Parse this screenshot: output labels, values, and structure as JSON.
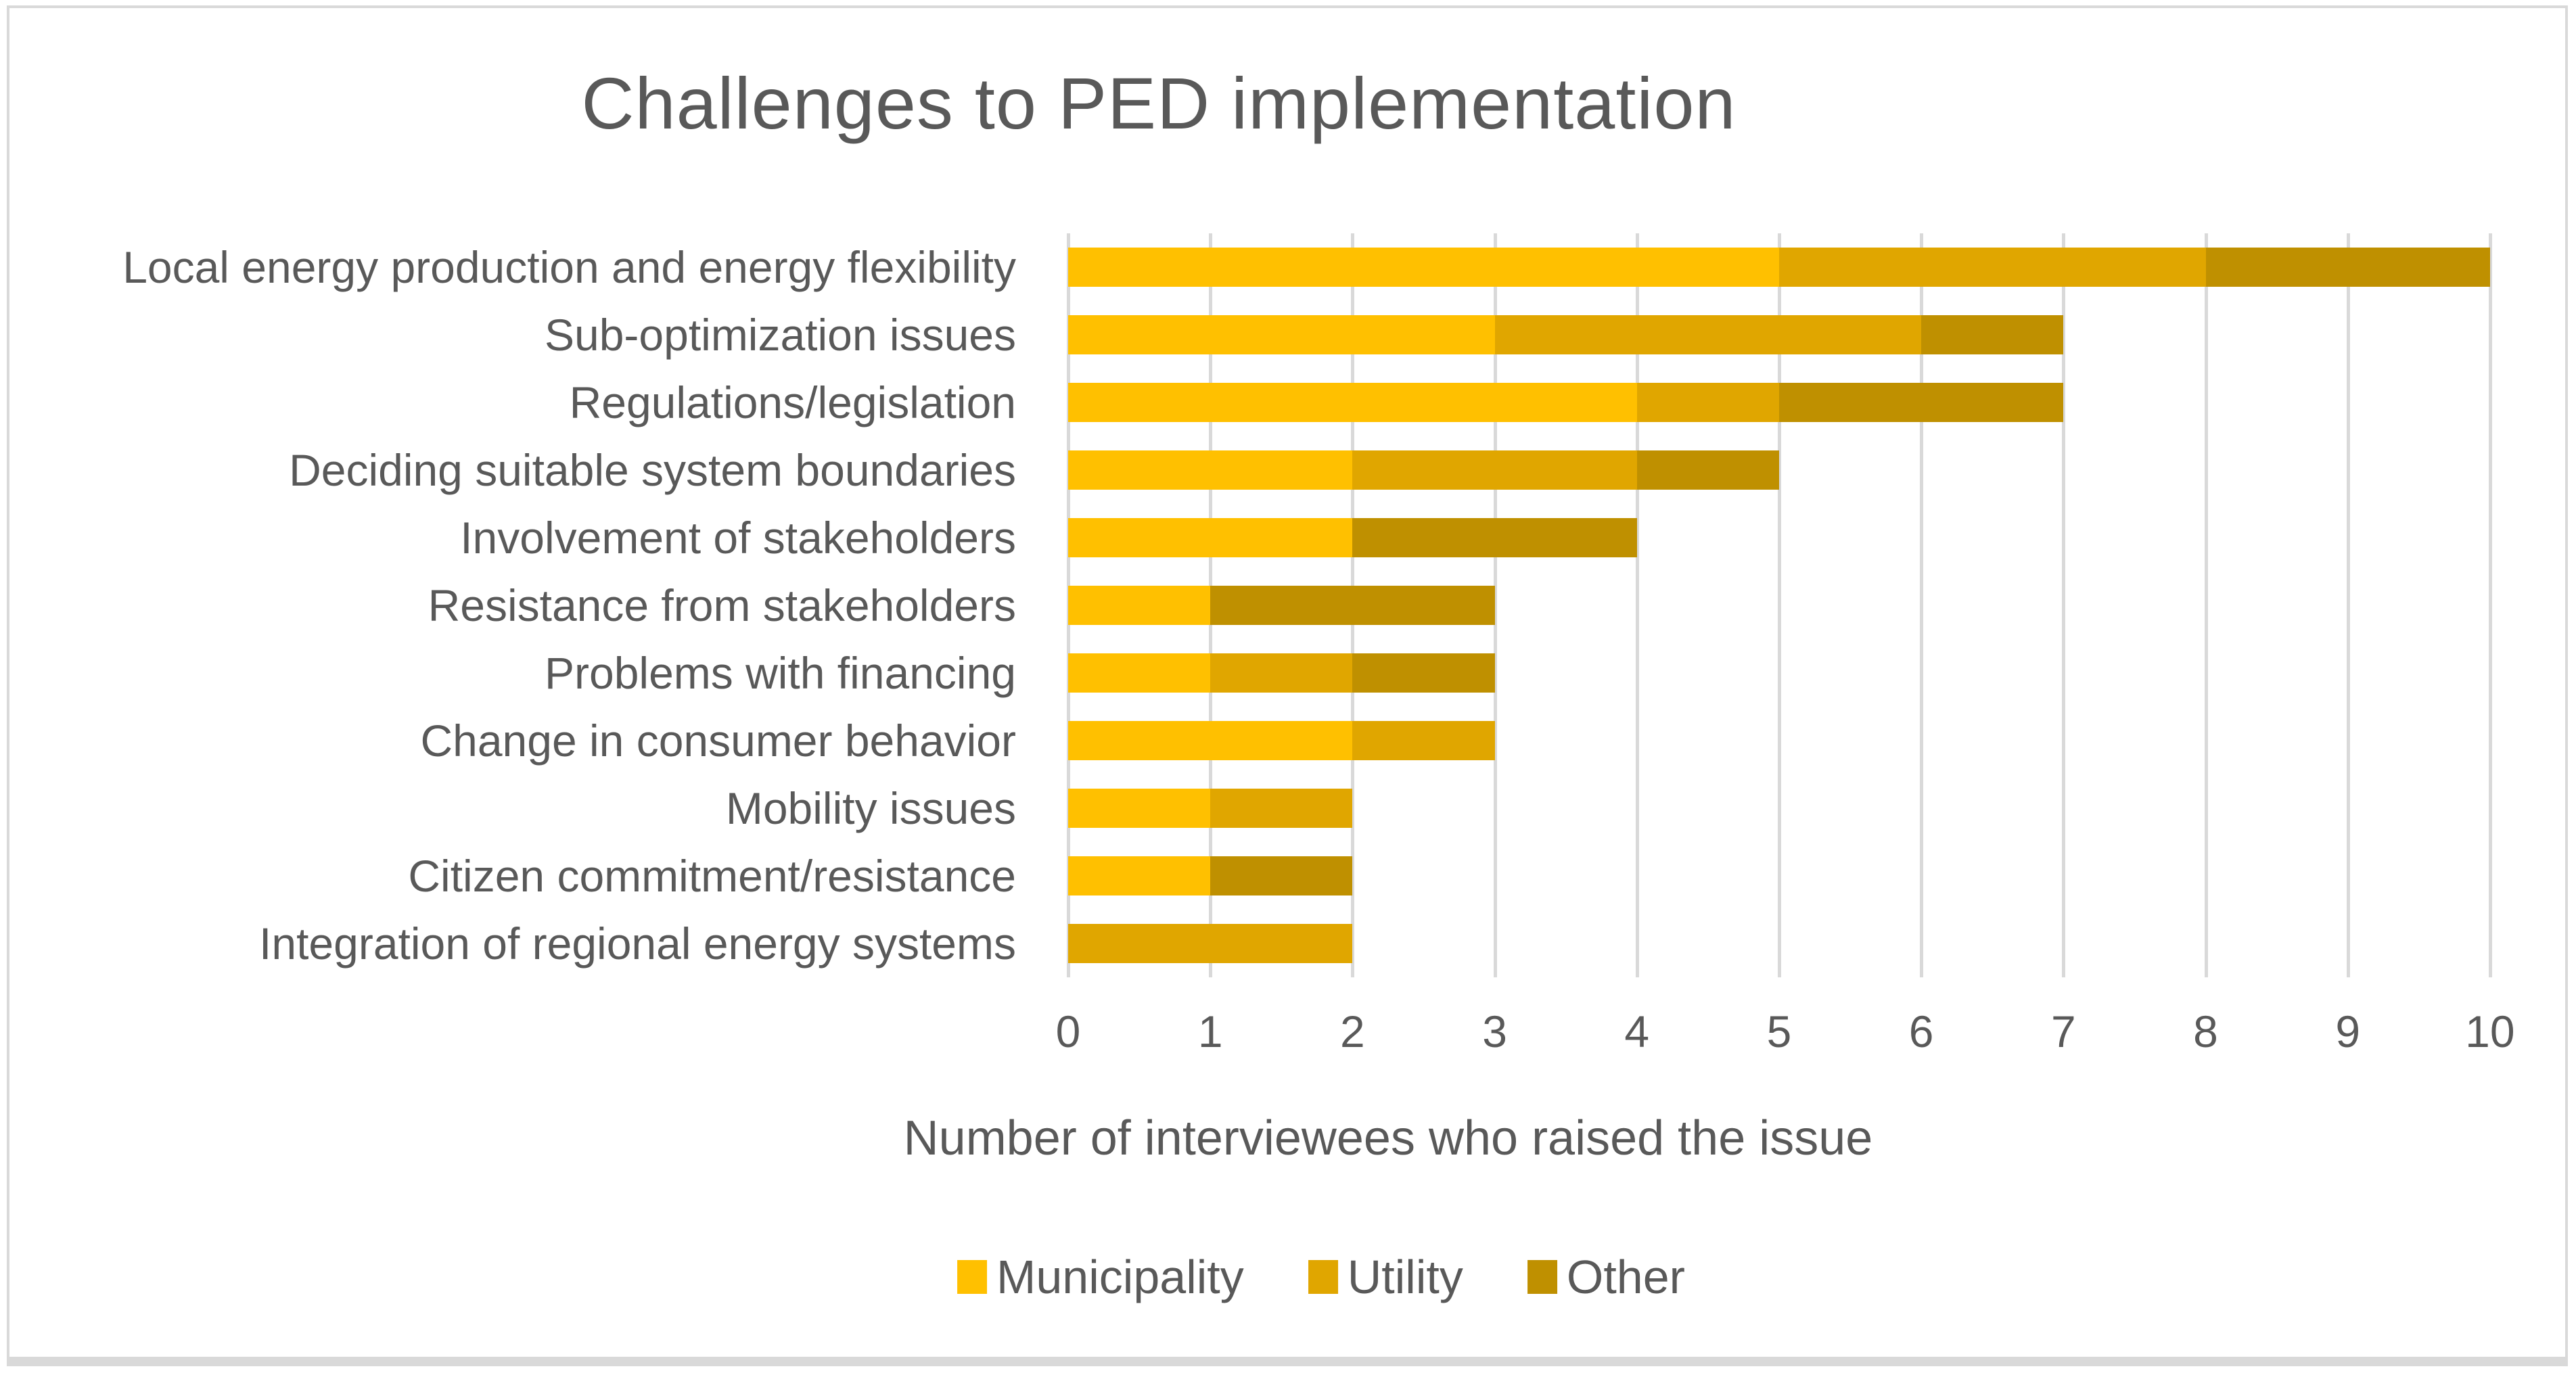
{
  "chart_data": {
    "type": "bar",
    "orientation": "horizontal",
    "stacked": true,
    "title": "Challenges to PED implementation",
    "xlabel": "Number of interviewees who raised the issue",
    "ylabel": "",
    "xlim": [
      0,
      10
    ],
    "grid": "vertical",
    "legend_position": "bottom",
    "tick_labels": [
      "0",
      "1",
      "2",
      "3",
      "4",
      "5",
      "6",
      "7",
      "8",
      "9",
      "10"
    ],
    "categories": [
      "Local energy production and energy flexibility",
      "Sub-optimization issues",
      "Regulations/legislation",
      "Deciding suitable system boundaries",
      "Involvement of stakeholders",
      "Resistance from stakeholders",
      "Problems with financing",
      "Change in consumer behavior",
      "Mobility issues",
      "Citizen commitment/resistance",
      "Integration of regional energy systems"
    ],
    "series": [
      {
        "name": "Municipality",
        "color": "#FFC000",
        "values": [
          5,
          3,
          4,
          2,
          2,
          1,
          1,
          2,
          1,
          1,
          0
        ]
      },
      {
        "name": "Utility",
        "color": "#E0A600",
        "values": [
          3,
          3,
          1,
          2,
          0,
          0,
          1,
          1,
          1,
          0,
          2
        ]
      },
      {
        "name": "Other",
        "color": "#BF9000",
        "values": [
          2,
          1,
          2,
          1,
          2,
          2,
          1,
          0,
          0,
          1,
          0
        ]
      }
    ],
    "totals": [
      10,
      7,
      7,
      5,
      4,
      3,
      3,
      3,
      2,
      2,
      2
    ],
    "colors": {
      "gridline": "#D9D9D9",
      "border": "#D9D9D9",
      "text": "#595959",
      "background": "#FFFFFF"
    }
  }
}
